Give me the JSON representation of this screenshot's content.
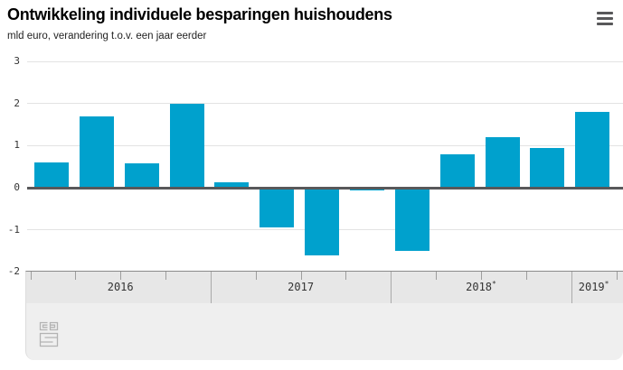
{
  "header": {
    "title": "Ontwikkeling individuele besparingen huishoudens",
    "subtitle": "mld euro, verandering t.o.v. een jaar eerder",
    "menu_icon": "hamburger-menu-icon"
  },
  "footer": {
    "logo_icon": "cbs-logo"
  },
  "colors": {
    "bar": "#00a1cd",
    "zero_line": "#58585a",
    "gridline": "#e3e3e3",
    "axis_band_bg": "#e7e7e7",
    "footer_bg": "#efefef",
    "tick": "#9e9e9e",
    "text": "#333333"
  },
  "chart_data": {
    "type": "bar",
    "title": "Ontwikkeling individuele besparingen huishoudens",
    "subtitle": "mld euro, verandering t.o.v. een jaar eerder",
    "xlabel": "",
    "ylabel": "mld euro",
    "ylim": [
      -2,
      3
    ],
    "yticks": [
      3,
      2,
      1,
      0,
      -1,
      -2
    ],
    "grid": true,
    "legend": "none",
    "x_unit": "kwartaal",
    "groups": [
      {
        "label": "2016",
        "mark": "",
        "values": [
          0.6,
          1.7,
          0.58,
          2.0
        ]
      },
      {
        "label": "2017",
        "mark": "",
        "values": [
          0.13,
          -0.95,
          -1.6,
          -0.07
        ]
      },
      {
        "label": "2018",
        "mark": "*",
        "values": [
          -1.5,
          0.8,
          1.2,
          0.95
        ]
      },
      {
        "label": "2019",
        "mark": "*",
        "values": [
          1.8
        ]
      }
    ]
  }
}
